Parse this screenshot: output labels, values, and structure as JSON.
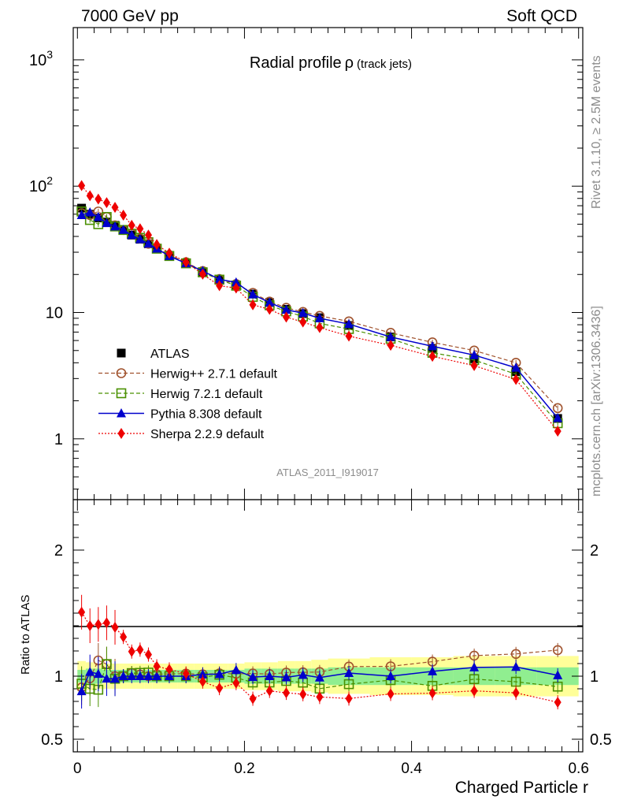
{
  "header": {
    "left": "7000 GeV pp",
    "right": "Soft QCD"
  },
  "side_labels": {
    "top": "Rivet 3.1.10, ≥ 2.5M events",
    "bottom": "mcplots.cern.ch [arXiv:1306.3436]"
  },
  "chart_data": {
    "type": "line",
    "title": "Radial profile",
    "title_symbol": "ρ",
    "title_suffix": "(track jets)",
    "watermark": "ATLAS_2011_I919017",
    "xlabel": "Charged Particle r",
    "ylabel_ratio": "Ratio to ATLAS",
    "xlim": [
      -0.005,
      0.605
    ],
    "ylim_main": [
      0.33,
      1800
    ],
    "ylim_ratio": [
      0.4,
      2.4
    ],
    "x_ticks": [
      "0",
      "0.2",
      "0.4",
      "0.6"
    ],
    "y_ticks_main": [
      {
        "label": "10",
        "exp": "3",
        "value": 1000
      },
      {
        "label": "10",
        "exp": "2",
        "value": 100
      },
      {
        "label": "10",
        "exp": "",
        "value": 10
      },
      {
        "label": "1",
        "exp": "",
        "value": 1
      }
    ],
    "y_ticks_ratio": [
      {
        "label": "2",
        "value": 2
      },
      {
        "label": "1",
        "value": 1
      },
      {
        "label": "0.5",
        "value": 0.5
      }
    ],
    "x": [
      0.005,
      0.015,
      0.025,
      0.035,
      0.045,
      0.055,
      0.065,
      0.075,
      0.085,
      0.095,
      0.11,
      0.13,
      0.15,
      0.17,
      0.19,
      0.21,
      0.23,
      0.25,
      0.27,
      0.29,
      0.325,
      0.375,
      0.425,
      0.475,
      0.525,
      0.575
    ],
    "band_edges": [
      0,
      0.01,
      0.02,
      0.03,
      0.04,
      0.05,
      0.06,
      0.07,
      0.08,
      0.09,
      0.1,
      0.12,
      0.14,
      0.16,
      0.18,
      0.2,
      0.22,
      0.24,
      0.26,
      0.28,
      0.3,
      0.35,
      0.4,
      0.45,
      0.5,
      0.55,
      0.6
    ],
    "band_stat": [
      0.05,
      0.06,
      0.06,
      0.05,
      0.05,
      0.05,
      0.05,
      0.05,
      0.05,
      0.05,
      0.05,
      0.05,
      0.05,
      0.05,
      0.05,
      0.06,
      0.06,
      0.06,
      0.06,
      0.06,
      0.07,
      0.07,
      0.07,
      0.07,
      0.07,
      0.07
    ],
    "band_total": [
      0.12,
      0.11,
      0.1,
      0.1,
      0.1,
      0.1,
      0.1,
      0.1,
      0.1,
      0.1,
      0.1,
      0.1,
      0.1,
      0.1,
      0.1,
      0.11,
      0.11,
      0.12,
      0.12,
      0.13,
      0.14,
      0.15,
      0.15,
      0.16,
      0.16,
      0.16
    ],
    "series": [
      {
        "name": "ATLAS",
        "label": "ATLAS",
        "color": "#000000",
        "marker": "square-filled",
        "style": "none",
        "values": [
          67,
          60,
          56,
          52,
          49,
          45,
          41,
          38,
          35,
          32,
          28,
          24.5,
          21,
          18,
          16.5,
          14,
          12,
          10.6,
          9.8,
          9.1,
          7.9,
          6.4,
          5.2,
          4.3,
          3.4,
          1.45
        ]
      },
      {
        "name": "Herwig++ 2.7.1",
        "label": "Herwig++ 2.7.1 default",
        "color": "#a0522d",
        "marker": "circle-open",
        "style": "dashed",
        "values": [
          61,
          59,
          63,
          57,
          49,
          45,
          42,
          38.5,
          35,
          32.5,
          28.5,
          25,
          21.3,
          18.4,
          16.8,
          14.3,
          12.2,
          10.9,
          10.1,
          9.4,
          8.5,
          6.9,
          5.8,
          5.0,
          4.0,
          1.75
        ]
      },
      {
        "name": "Herwig 7.2.1",
        "label": "Herwig 7.2.1 default",
        "color": "#4a9000",
        "marker": "square-open",
        "style": "dashed",
        "values": [
          63,
          54,
          50,
          57,
          48,
          45,
          42,
          39,
          36,
          32,
          28,
          24.5,
          20.8,
          18.2,
          16.3,
          13.3,
          11.4,
          10.2,
          9.3,
          8.2,
          7.4,
          6.2,
          4.8,
          4.2,
          3.25,
          1.33
        ]
      },
      {
        "name": "Pythia 8.308",
        "label": "Pythia 8.308 default",
        "color": "#0000cc",
        "marker": "triangle-filled",
        "style": "solid",
        "values": [
          59,
          62,
          57,
          51,
          48,
          45,
          41,
          38,
          35,
          32,
          28,
          24.5,
          21.3,
          18.3,
          17.3,
          13.9,
          12.0,
          10.5,
          9.9,
          9.0,
          8.1,
          6.4,
          5.4,
          4.6,
          3.65,
          1.46
        ]
      },
      {
        "name": "Sherpa 2.2.9",
        "label": "Sherpa 2.2.9 default",
        "color": "#ee0000",
        "marker": "diamond-filled",
        "style": "dotted",
        "values": [
          101,
          84,
          79,
          74,
          68,
          59,
          49,
          46,
          41,
          34.5,
          29.5,
          25,
          20.1,
          16.3,
          15.6,
          11.5,
          10.6,
          9.2,
          8.4,
          7.6,
          6.5,
          5.5,
          4.5,
          3.8,
          2.95,
          1.15
        ]
      }
    ]
  }
}
